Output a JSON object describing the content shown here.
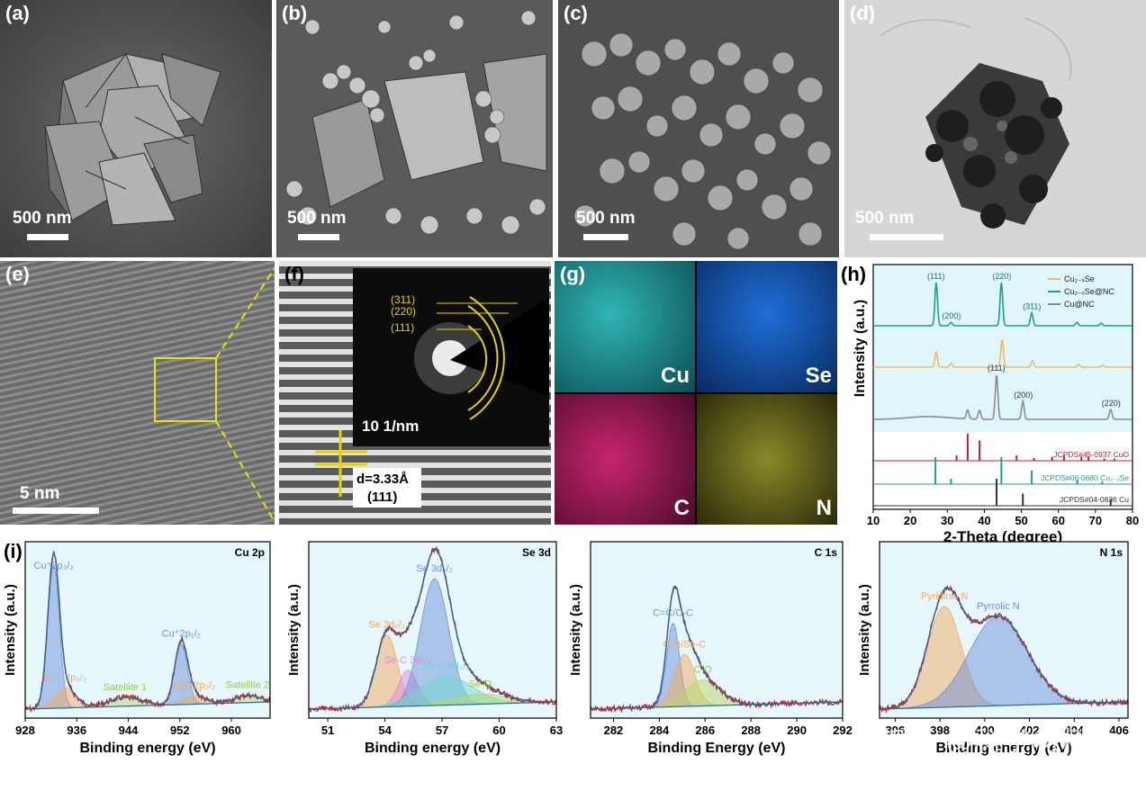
{
  "panels": {
    "a": {
      "label": "(a)",
      "scale": "500 nm"
    },
    "b": {
      "label": "(b)",
      "scale": "500 nm"
    },
    "c": {
      "label": "(c)",
      "scale": "500 nm"
    },
    "d": {
      "label": "(d)",
      "scale": "500 nm"
    },
    "e": {
      "label": "(e)",
      "scale": "5 nm"
    },
    "f": {
      "label": "(f)",
      "saed_scale": "10 1/nm",
      "rings": [
        "(311)",
        "(220)",
        "(111)"
      ],
      "d_spacing": "d=3.33Å",
      "plane": "(111)"
    },
    "g": {
      "label": "(g)",
      "elements": [
        "Cu",
        "Se",
        "C",
        "N"
      ]
    },
    "h": {
      "label": "(h)"
    },
    "i": {
      "label": "(i)"
    }
  },
  "colors": {
    "cu2xse": "#f2b766",
    "cu2xse_nc": "#1f9e8e",
    "cu_nc": "#8c8c8c",
    "cuo_ref": "#c0202a",
    "cu2xse_ref": "#1f9e8e",
    "cu_ref": "#333333",
    "exp_line": "#c0202a",
    "fit_line": "#2b6c9c"
  },
  "chart_data": [
    {
      "type": "line",
      "panel": "h",
      "xlabel": "2-Theta (degree)",
      "ylabel": "Intensity (a.u.)",
      "xlim": [
        10,
        80
      ],
      "xticks": [
        10,
        20,
        30,
        40,
        50,
        60,
        70,
        80
      ],
      "legend": [
        "Cu2-xSe",
        "Cu2-xSe@NC",
        "Cu@NC"
      ],
      "legend_placement": "top-right",
      "series": [
        {
          "name": "Cu2-xSe@NC",
          "peaks": [
            {
              "x": 27,
              "h": 1.0,
              "label": "(111)"
            },
            {
              "x": 31,
              "h": 0.08,
              "label": "(200)"
            },
            {
              "x": 44.6,
              "h": 1.0,
              "label": "(220)"
            },
            {
              "x": 52.8,
              "h": 0.3,
              "label": "(311)"
            },
            {
              "x": 65,
              "h": 0.08
            },
            {
              "x": 71.5,
              "h": 0.06
            }
          ]
        },
        {
          "name": "Cu2-xSe",
          "peaks": [
            {
              "x": 27,
              "h": 0.45
            },
            {
              "x": 31,
              "h": 0.12
            },
            {
              "x": 44.8,
              "h": 0.85
            },
            {
              "x": 53,
              "h": 0.2
            },
            {
              "x": 65.5,
              "h": 0.08
            },
            {
              "x": 72,
              "h": 0.06
            }
          ]
        },
        {
          "name": "Cu@NC",
          "peaks": [
            {
              "x": 35.5,
              "h": 0.2
            },
            {
              "x": 38.7,
              "h": 0.2
            },
            {
              "x": 43.3,
              "h": 1.0,
              "label": "(111)"
            },
            {
              "x": 50.4,
              "h": 0.4,
              "label": "(200)"
            },
            {
              "x": 74.1,
              "h": 0.22,
              "label": "(220)"
            }
          ]
        }
      ],
      "references": [
        {
          "name": "JCPDS#45-0937 CuO",
          "peaks": [
            [
              32.5,
              0.2
            ],
            [
              35.5,
              1.0
            ],
            [
              38.7,
              0.75
            ],
            [
              48.7,
              0.2
            ],
            [
              53.4,
              0.1
            ],
            [
              58.3,
              0.15
            ],
            [
              61.5,
              0.2
            ],
            [
              66.2,
              0.15
            ],
            [
              68.1,
              0.15
            ],
            [
              72.4,
              0.08
            ],
            [
              75.1,
              0.08
            ]
          ]
        },
        {
          "name": "JCPDS#06-0680 Cu2-xSe",
          "peaks": [
            [
              26.8,
              1.0
            ],
            [
              31.0,
              0.2
            ],
            [
              44.6,
              1.0
            ],
            [
              52.8,
              0.5
            ],
            [
              65.1,
              0.15
            ],
            [
              71.8,
              0.1
            ]
          ]
        },
        {
          "name": "JCPDS#04-0836 Cu",
          "peaks": [
            [
              43.3,
              1.0
            ],
            [
              50.4,
              0.45
            ],
            [
              74.1,
              0.25
            ]
          ]
        }
      ]
    },
    {
      "type": "line",
      "panel": "i1",
      "title": "Cu 2p",
      "xlabel": "Binding energy (eV)",
      "ylabel": "Intensity (a.u.)",
      "xlim": [
        928,
        966
      ],
      "xticks": [
        928,
        936,
        944,
        952,
        960
      ],
      "components": [
        {
          "name": "Cu+2p3/2",
          "center": 932.4,
          "height": 1.0,
          "width": 0.9,
          "color": "#6f8fd8"
        },
        {
          "name": "Cu2+2p3/2",
          "center": 934.2,
          "height": 0.14,
          "width": 1.6,
          "color": "#f0a960"
        },
        {
          "name": "Satellite 1",
          "center": 943.5,
          "height": 0.06,
          "width": 2.5,
          "color": "#b5d86a"
        },
        {
          "name": "Cu+2p1/2",
          "center": 952.2,
          "height": 0.42,
          "width": 1.0,
          "color": "#6f8fd8"
        },
        {
          "name": "Cu2+2p3/2",
          "center": 954.2,
          "height": 0.06,
          "width": 1.6,
          "color": "#f0a960"
        },
        {
          "name": "Satellite 2",
          "center": 962.5,
          "height": 0.05,
          "width": 2.0,
          "color": "#b5d86a"
        }
      ]
    },
    {
      "type": "line",
      "panel": "i2",
      "title": "Se 3d",
      "xlabel": "Binding energy (eV)",
      "ylabel": "Intensity (a.u.)",
      "xlim": [
        50,
        63
      ],
      "xticks": [
        51,
        54,
        57,
        60,
        63
      ],
      "components": [
        {
          "name": "Se 3d5/2",
          "center": 54.1,
          "height": 0.5,
          "width": 0.55,
          "color": "#f0a960"
        },
        {
          "name": "Se-C 3d5/2",
          "center": 55.2,
          "height": 0.25,
          "width": 0.5,
          "color": "#e08ae0"
        },
        {
          "name": "Se 3d3/2",
          "center": 56.6,
          "height": 0.88,
          "width": 0.75,
          "color": "#6f8fd8"
        },
        {
          "name": "Se-C 3d3/2",
          "center": 57.2,
          "height": 0.2,
          "width": 1.4,
          "color": "#6fd8d0"
        },
        {
          "name": "Se-O",
          "center": 59.0,
          "height": 0.07,
          "width": 1.4,
          "color": "#b5d86a"
        }
      ]
    },
    {
      "type": "line",
      "panel": "i3",
      "title": "C 1s",
      "xlabel": "Binding Energy (eV)",
      "ylabel": "Intensity (a.u.)",
      "xlim": [
        281,
        292
      ],
      "xticks": [
        282,
        284,
        286,
        288,
        290,
        292
      ],
      "components": [
        {
          "name": "C=C/C-C",
          "center": 284.6,
          "height": 0.58,
          "width": 0.28,
          "color": "#6f8fd8"
        },
        {
          "name": "C-N/Se-C",
          "center": 285.1,
          "height": 0.36,
          "width": 0.45,
          "color": "#f0a960"
        },
        {
          "name": "C-O",
          "center": 285.9,
          "height": 0.18,
          "width": 0.75,
          "color": "#b5d86a"
        }
      ]
    },
    {
      "type": "line",
      "panel": "i4",
      "title": "N 1s",
      "xlabel": "Binding energy (eV)",
      "ylabel": "Intensity (a.u.)",
      "xlim": [
        395.3,
        406.4
      ],
      "xticks": [
        396,
        398,
        400,
        402,
        404,
        406
      ],
      "components": [
        {
          "name": "Pyridinic N",
          "center": 398.2,
          "height": 0.7,
          "width": 0.75,
          "color": "#f0a960"
        },
        {
          "name": "Pyrrolic N",
          "center": 400.6,
          "height": 0.62,
          "width": 1.3,
          "color": "#6f8fd8"
        }
      ]
    }
  ],
  "watermark": "知乎 @科学材料站"
}
